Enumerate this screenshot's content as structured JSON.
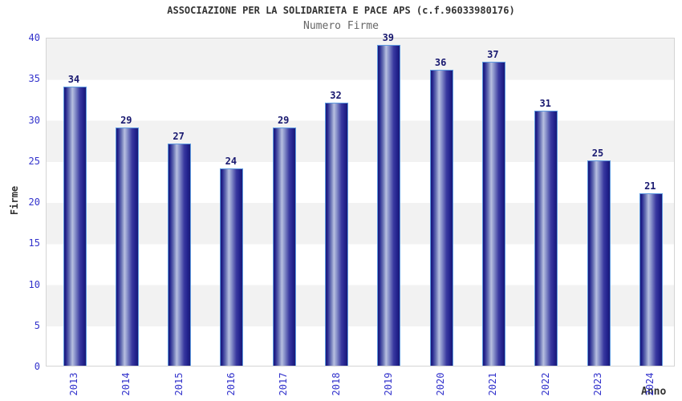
{
  "chart_data": {
    "type": "bar",
    "title": "ASSOCIAZIONE PER LA SOLIDARIETA E PACE APS (c.f.96033980176)",
    "subtitle": "Numero Firme",
    "xlabel": "Anno",
    "ylabel": "Firme",
    "categories": [
      "2013",
      "2014",
      "2015",
      "2016",
      "2017",
      "2018",
      "2019",
      "2020",
      "2021",
      "2022",
      "2023",
      "2024"
    ],
    "values": [
      34,
      29,
      27,
      24,
      29,
      32,
      39,
      36,
      37,
      31,
      25,
      21
    ],
    "ylim": [
      0,
      40
    ],
    "ytick_step": 5,
    "grid": "horizontal-bands-every-5",
    "legend": "none",
    "colors": {
      "bar_dark": "#191975",
      "bar_light": "#b7bfe0",
      "bar_border": "#5e9ae0",
      "tick_label": "#3333cc",
      "value_label": "#191970",
      "band_gray": "#f2f2f2",
      "band_white": "#ffffff",
      "plot_border": "#d4d4d4",
      "title_color": "#333333",
      "subtitle_color": "#666666"
    }
  }
}
